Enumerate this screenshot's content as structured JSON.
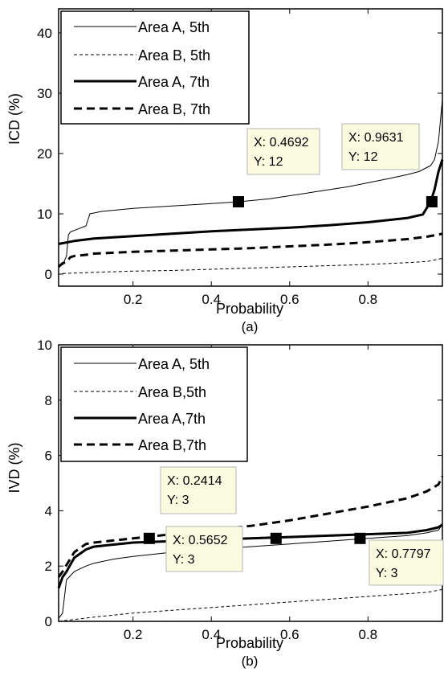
{
  "chart_data": [
    {
      "type": "line",
      "panel_label": "(a)",
      "xlabel": "Probability",
      "ylabel": "ICD (%)",
      "xlim": [
        0.01,
        0.99
      ],
      "ylim": [
        -2,
        44
      ],
      "xticks": [
        0.2,
        0.4,
        0.6,
        0.8
      ],
      "yticks": [
        0,
        10,
        20,
        30,
        40
      ],
      "grid": false,
      "legend": "top-left",
      "series": [
        {
          "name": "Area A, 5th",
          "style": "thin-solid",
          "x": [
            0.02,
            0.03,
            0.035,
            0.04,
            0.06,
            0.08,
            0.09,
            0.12,
            0.2,
            0.3,
            0.4,
            0.47,
            0.55,
            0.65,
            0.75,
            0.85,
            0.9,
            0.93,
            0.96,
            0.97,
            0.98,
            0.99
          ],
          "y": [
            1.5,
            3,
            6.5,
            7,
            7.5,
            8,
            10,
            10.4,
            10.9,
            11.3,
            11.7,
            12,
            12.5,
            13.5,
            14.5,
            15.8,
            16.5,
            17,
            18,
            19,
            22,
            29
          ]
        },
        {
          "name": "Area B, 5th",
          "style": "thin-dashed",
          "x": [
            0.02,
            0.1,
            0.2,
            0.3,
            0.4,
            0.5,
            0.6,
            0.7,
            0.8,
            0.9,
            0.95,
            0.99
          ],
          "y": [
            0.1,
            0.3,
            0.5,
            0.6,
            0.8,
            1.0,
            1.2,
            1.4,
            1.6,
            1.9,
            2.1,
            2.6
          ]
        },
        {
          "name": "Area A, 7th",
          "style": "thick-solid",
          "x": [
            0.01,
            0.05,
            0.1,
            0.2,
            0.3,
            0.4,
            0.5,
            0.6,
            0.7,
            0.8,
            0.9,
            0.94,
            0.96,
            0.97,
            0.98,
            0.99
          ],
          "y": [
            5,
            5.5,
            5.9,
            6.3,
            6.7,
            7.1,
            7.4,
            7.7,
            8.1,
            8.6,
            9.3,
            9.9,
            12,
            14,
            17,
            19
          ]
        },
        {
          "name": "Area B, 7th",
          "style": "thick-dashed",
          "x": [
            0.01,
            0.02,
            0.03,
            0.04,
            0.05,
            0.08,
            0.1,
            0.2,
            0.3,
            0.4,
            0.5,
            0.6,
            0.7,
            0.8,
            0.9,
            0.95,
            0.99
          ],
          "y": [
            1.2,
            1.8,
            2,
            2.8,
            3,
            3.2,
            3.4,
            3.7,
            3.9,
            4.1,
            4.3,
            4.6,
            4.9,
            5.3,
            5.8,
            6.2,
            6.7
          ]
        }
      ],
      "annotations": [
        {
          "x": 0.4692,
          "y": 12,
          "text_x": "X: 0.4692",
          "text_y": "Y: 12"
        },
        {
          "x": 0.9631,
          "y": 12,
          "text_x": "X: 0.9631",
          "text_y": "Y: 12"
        }
      ]
    },
    {
      "type": "line",
      "panel_label": "(b)",
      "xlabel": "Probability",
      "ylabel": "IVD (%)",
      "xlim": [
        0.01,
        0.99
      ],
      "ylim": [
        0,
        10
      ],
      "xticks": [
        0.2,
        0.4,
        0.6,
        0.8
      ],
      "yticks": [
        0,
        2,
        4,
        6,
        8,
        10
      ],
      "grid": false,
      "legend": "top-left",
      "series": [
        {
          "name": "Area A, 5th",
          "style": "thin-solid",
          "x": [
            0.01,
            0.02,
            0.03,
            0.05,
            0.08,
            0.1,
            0.15,
            0.2,
            0.3,
            0.4,
            0.5,
            0.6,
            0.7,
            0.8,
            0.9,
            0.95,
            0.98,
            0.99
          ],
          "y": [
            0.1,
            0.3,
            1.5,
            1.8,
            2.0,
            2.1,
            2.25,
            2.35,
            2.5,
            2.6,
            2.7,
            2.8,
            2.9,
            3.0,
            3.1,
            3.2,
            3.3,
            3.5
          ]
        },
        {
          "name": "Area B,5th",
          "style": "thin-dashed",
          "x": [
            0.01,
            0.1,
            0.2,
            0.3,
            0.4,
            0.5,
            0.6,
            0.7,
            0.8,
            0.9,
            0.95,
            0.99
          ],
          "y": [
            0.0,
            0.15,
            0.3,
            0.4,
            0.5,
            0.6,
            0.7,
            0.8,
            0.9,
            1.0,
            1.05,
            1.15
          ]
        },
        {
          "name": "Area A,7th",
          "style": "thick-solid",
          "x": [
            0.01,
            0.02,
            0.03,
            0.05,
            0.08,
            0.1,
            0.2,
            0.3,
            0.4,
            0.5,
            0.6,
            0.7,
            0.8,
            0.9,
            0.95,
            0.98,
            0.99
          ],
          "y": [
            1.2,
            1.6,
            1.8,
            2.3,
            2.6,
            2.7,
            2.85,
            2.9,
            2.95,
            3.0,
            3.05,
            3.1,
            3.15,
            3.2,
            3.3,
            3.4,
            3.5
          ]
        },
        {
          "name": "Area B,7th",
          "style": "thick-dashed",
          "x": [
            0.01,
            0.02,
            0.05,
            0.08,
            0.1,
            0.2,
            0.3,
            0.4,
            0.5,
            0.6,
            0.7,
            0.8,
            0.9,
            0.95,
            0.98,
            0.99
          ],
          "y": [
            1.6,
            1.8,
            2.5,
            2.8,
            2.85,
            3.0,
            3.15,
            3.3,
            3.45,
            3.65,
            3.9,
            4.15,
            4.45,
            4.7,
            4.95,
            5.25
          ]
        }
      ],
      "annotations": [
        {
          "x": 0.2414,
          "y": 3,
          "text_x": "X: 0.2414",
          "text_y": "Y: 3"
        },
        {
          "x": 0.5652,
          "y": 3,
          "text_x": "X: 0.5652",
          "text_y": "Y: 3"
        },
        {
          "x": 0.7797,
          "y": 3,
          "text_x": "X: 0.7797",
          "text_y": "Y: 3"
        }
      ]
    }
  ],
  "colors": {
    "line": "#000000",
    "datatip_fill": "#fbfbe2",
    "datatip_border": "#b4b4b4"
  }
}
